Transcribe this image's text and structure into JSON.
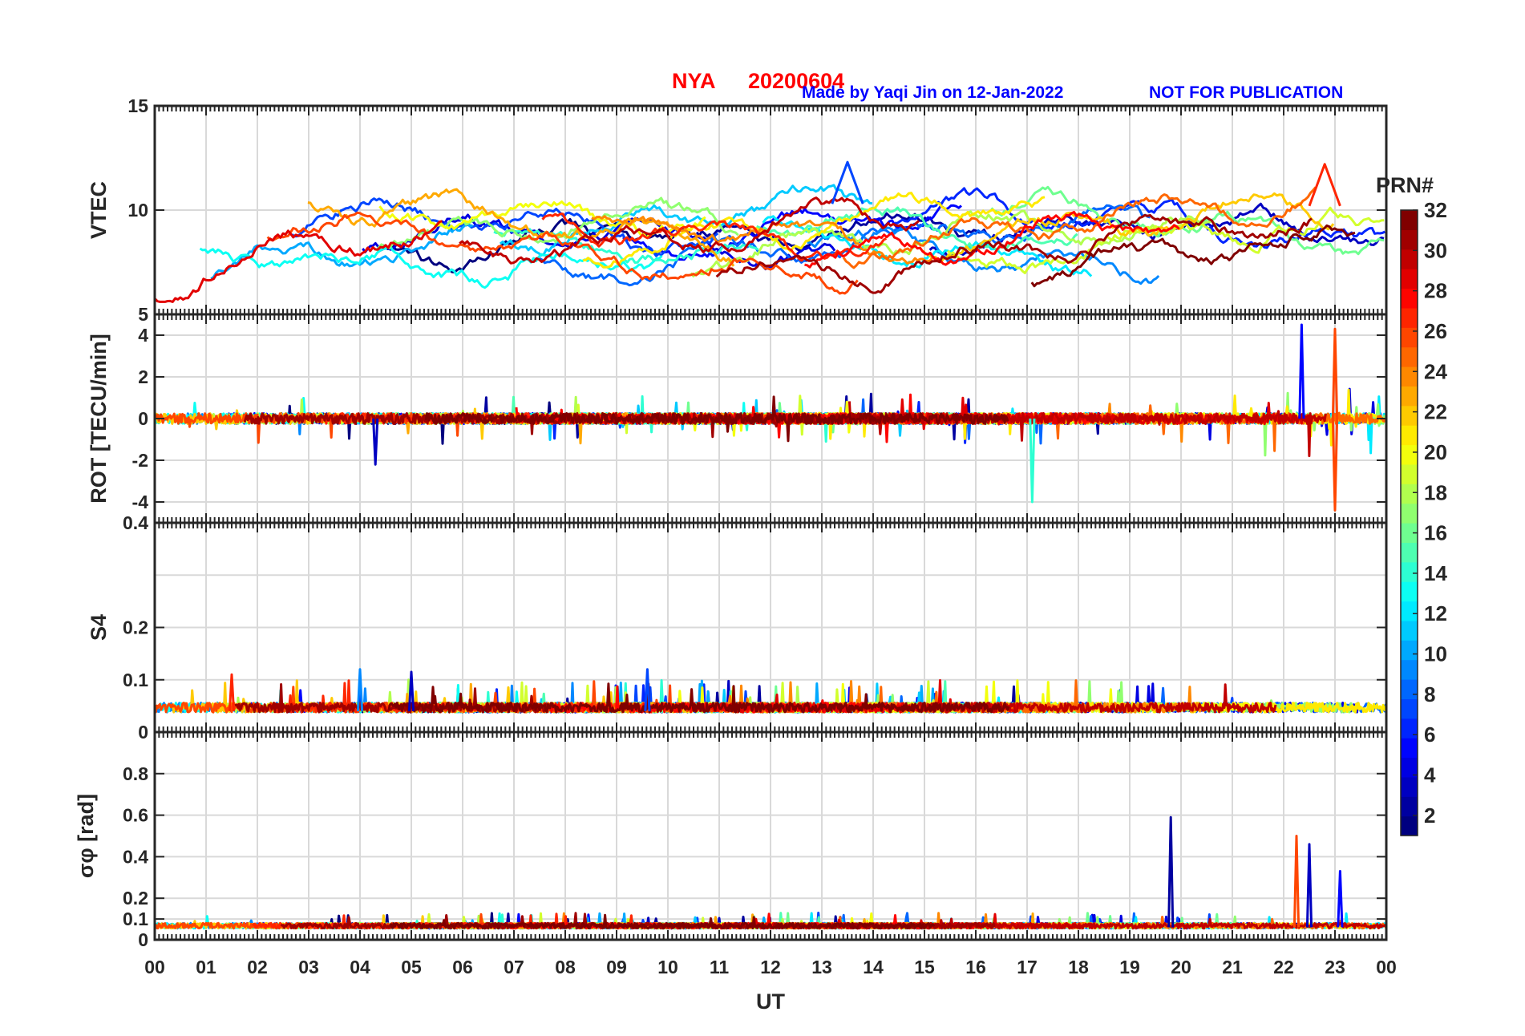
{
  "header": {
    "station": "NYA",
    "date": "20200604",
    "credit": "Made by Yaqi Jin on 12-Jan-2022",
    "notice": "NOT FOR PUBLICATION"
  },
  "colorbar": {
    "title": "PRN#",
    "range": [
      1,
      32
    ],
    "ticks": [
      "2",
      "4",
      "6",
      "8",
      "10",
      "12",
      "14",
      "16",
      "18",
      "20",
      "22",
      "24",
      "26",
      "28",
      "30",
      "32"
    ],
    "colormap": "jet"
  },
  "chart_data": [
    {
      "type": "line",
      "panel": "vtec",
      "ylabel": "VTEC",
      "ylim": [
        5,
        15
      ],
      "yticks": [
        "5",
        "10",
        "15"
      ],
      "xlim": [
        0,
        24
      ],
      "series_count": 32,
      "approx_range": [
        5.6,
        12.3
      ],
      "notable_peaks": [
        {
          "prn": 7,
          "ut": 13.5,
          "value": 12.3
        },
        {
          "prn": 27,
          "ut": 22.8,
          "value": 12.2
        }
      ]
    },
    {
      "type": "line",
      "panel": "rot",
      "ylabel": "ROT [TECU/min]",
      "ylim": [
        -5,
        5
      ],
      "yticks": [
        "-4",
        "-2",
        "0",
        "2",
        "4"
      ],
      "xlim": [
        0,
        24
      ],
      "series_count": 32,
      "notable_spikes": [
        {
          "prn": 5,
          "ut": 22.35,
          "value": 4.5
        },
        {
          "prn": 26,
          "ut": 23.0,
          "value": 4.3
        },
        {
          "prn": 26,
          "ut": 23.0,
          "value": -4.4
        },
        {
          "prn": 14,
          "ut": 17.1,
          "value": -4.0
        },
        {
          "prn": 3,
          "ut": 4.3,
          "value": -2.2
        }
      ]
    },
    {
      "type": "line",
      "panel": "s4",
      "ylabel": "S4",
      "ylim": [
        0,
        0.4
      ],
      "yticks": [
        "0",
        "0.1",
        "0.2",
        "0.4"
      ],
      "xlim": [
        0,
        24
      ],
      "series_count": 32,
      "baseline": 0.04,
      "notable_peaks": [
        {
          "prn": 9,
          "ut": 4.0,
          "value": 0.12
        },
        {
          "prn": 7,
          "ut": 9.6,
          "value": 0.12
        },
        {
          "prn": 3,
          "ut": 5.0,
          "value": 0.115
        },
        {
          "prn": 27,
          "ut": 1.5,
          "value": 0.11
        }
      ]
    },
    {
      "type": "line",
      "panel": "sigma_phi",
      "ylabel": "σφ [rad]",
      "ylim": [
        0,
        1.0
      ],
      "yticks": [
        "0",
        "0.1",
        "0.2",
        "0.4",
        "0.6",
        "0.8"
      ],
      "xlim": [
        0,
        24
      ],
      "xlabel": "UT",
      "xticks": [
        "00",
        "01",
        "02",
        "03",
        "04",
        "05",
        "06",
        "07",
        "08",
        "09",
        "10",
        "11",
        "12",
        "13",
        "14",
        "15",
        "16",
        "17",
        "18",
        "19",
        "20",
        "21",
        "22",
        "23",
        "00"
      ],
      "series_count": 32,
      "baseline": 0.06,
      "notable_peaks": [
        {
          "prn": 2,
          "ut": 19.8,
          "value": 0.59
        },
        {
          "prn": 26,
          "ut": 22.25,
          "value": 0.5
        },
        {
          "prn": 3,
          "ut": 22.5,
          "value": 0.46
        },
        {
          "prn": 5,
          "ut": 23.1,
          "value": 0.33
        }
      ]
    }
  ]
}
